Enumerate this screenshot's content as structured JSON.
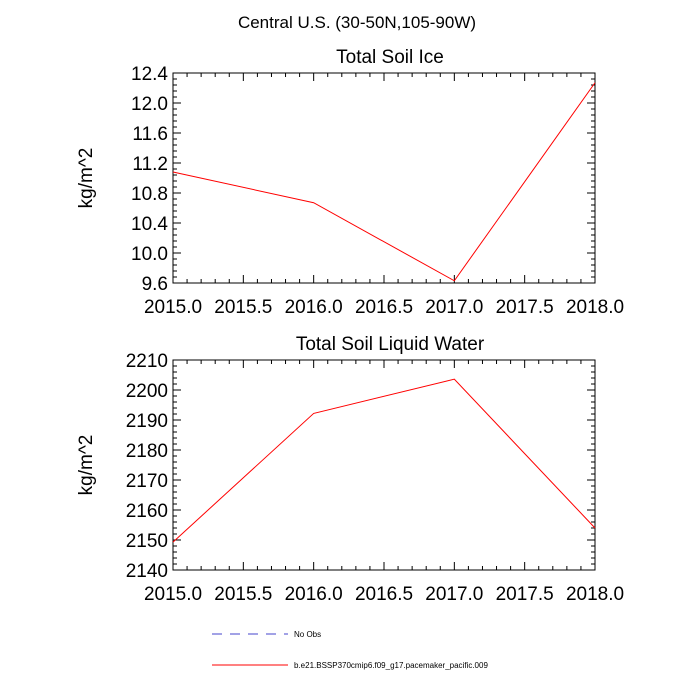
{
  "figure": {
    "title": "Central U.S. (30-50N,105-90W)"
  },
  "chart_data": [
    {
      "type": "line",
      "title": "Total Soil Ice",
      "xlabel": "",
      "ylabel": "kg/m^2",
      "x": [
        2015.0,
        2016.0,
        2017.0,
        2018.0
      ],
      "series": [
        {
          "name": "b.e21.BSSP370cmip6.f09_g17.pacemaker_pacific.009",
          "color": "#ff0000",
          "values": [
            11.08,
            10.67,
            9.63,
            12.27
          ]
        }
      ],
      "xlim": [
        2015.0,
        2018.0
      ],
      "ylim": [
        9.6,
        12.4
      ],
      "xticks": [
        "2015.0",
        "2015.5",
        "2016.0",
        "2016.5",
        "2017.0",
        "2017.5",
        "2018.0"
      ],
      "yticks": [
        "9.6",
        "10.0",
        "10.4",
        "10.8",
        "11.2",
        "11.6",
        "12.0",
        "12.4"
      ]
    },
    {
      "type": "line",
      "title": "Total Soil Liquid Water",
      "xlabel": "",
      "ylabel": "kg/m^2",
      "x": [
        2015.0,
        2016.0,
        2017.0,
        2018.0
      ],
      "series": [
        {
          "name": "b.e21.BSSP370cmip6.f09_g17.pacemaker_pacific.009",
          "color": "#ff0000",
          "values": [
            2149.3,
            2192.2,
            2203.6,
            2154.0
          ]
        }
      ],
      "xlim": [
        2015.0,
        2018.0
      ],
      "ylim": [
        2140,
        2210
      ],
      "xticks": [
        "2015.0",
        "2015.5",
        "2016.0",
        "2016.5",
        "2017.0",
        "2017.5",
        "2018.0"
      ],
      "yticks": [
        "2140",
        "2150",
        "2160",
        "2170",
        "2180",
        "2190",
        "2200",
        "2210"
      ]
    }
  ],
  "legend": {
    "placement": "bottom",
    "items": [
      {
        "label": "No Obs",
        "color": "#4444cc",
        "style": "dashed"
      },
      {
        "label": "b.e21.BSSP370cmip6.f09_g17.pacemaker_pacific.009",
        "color": "#ff0000",
        "style": "solid"
      }
    ]
  }
}
